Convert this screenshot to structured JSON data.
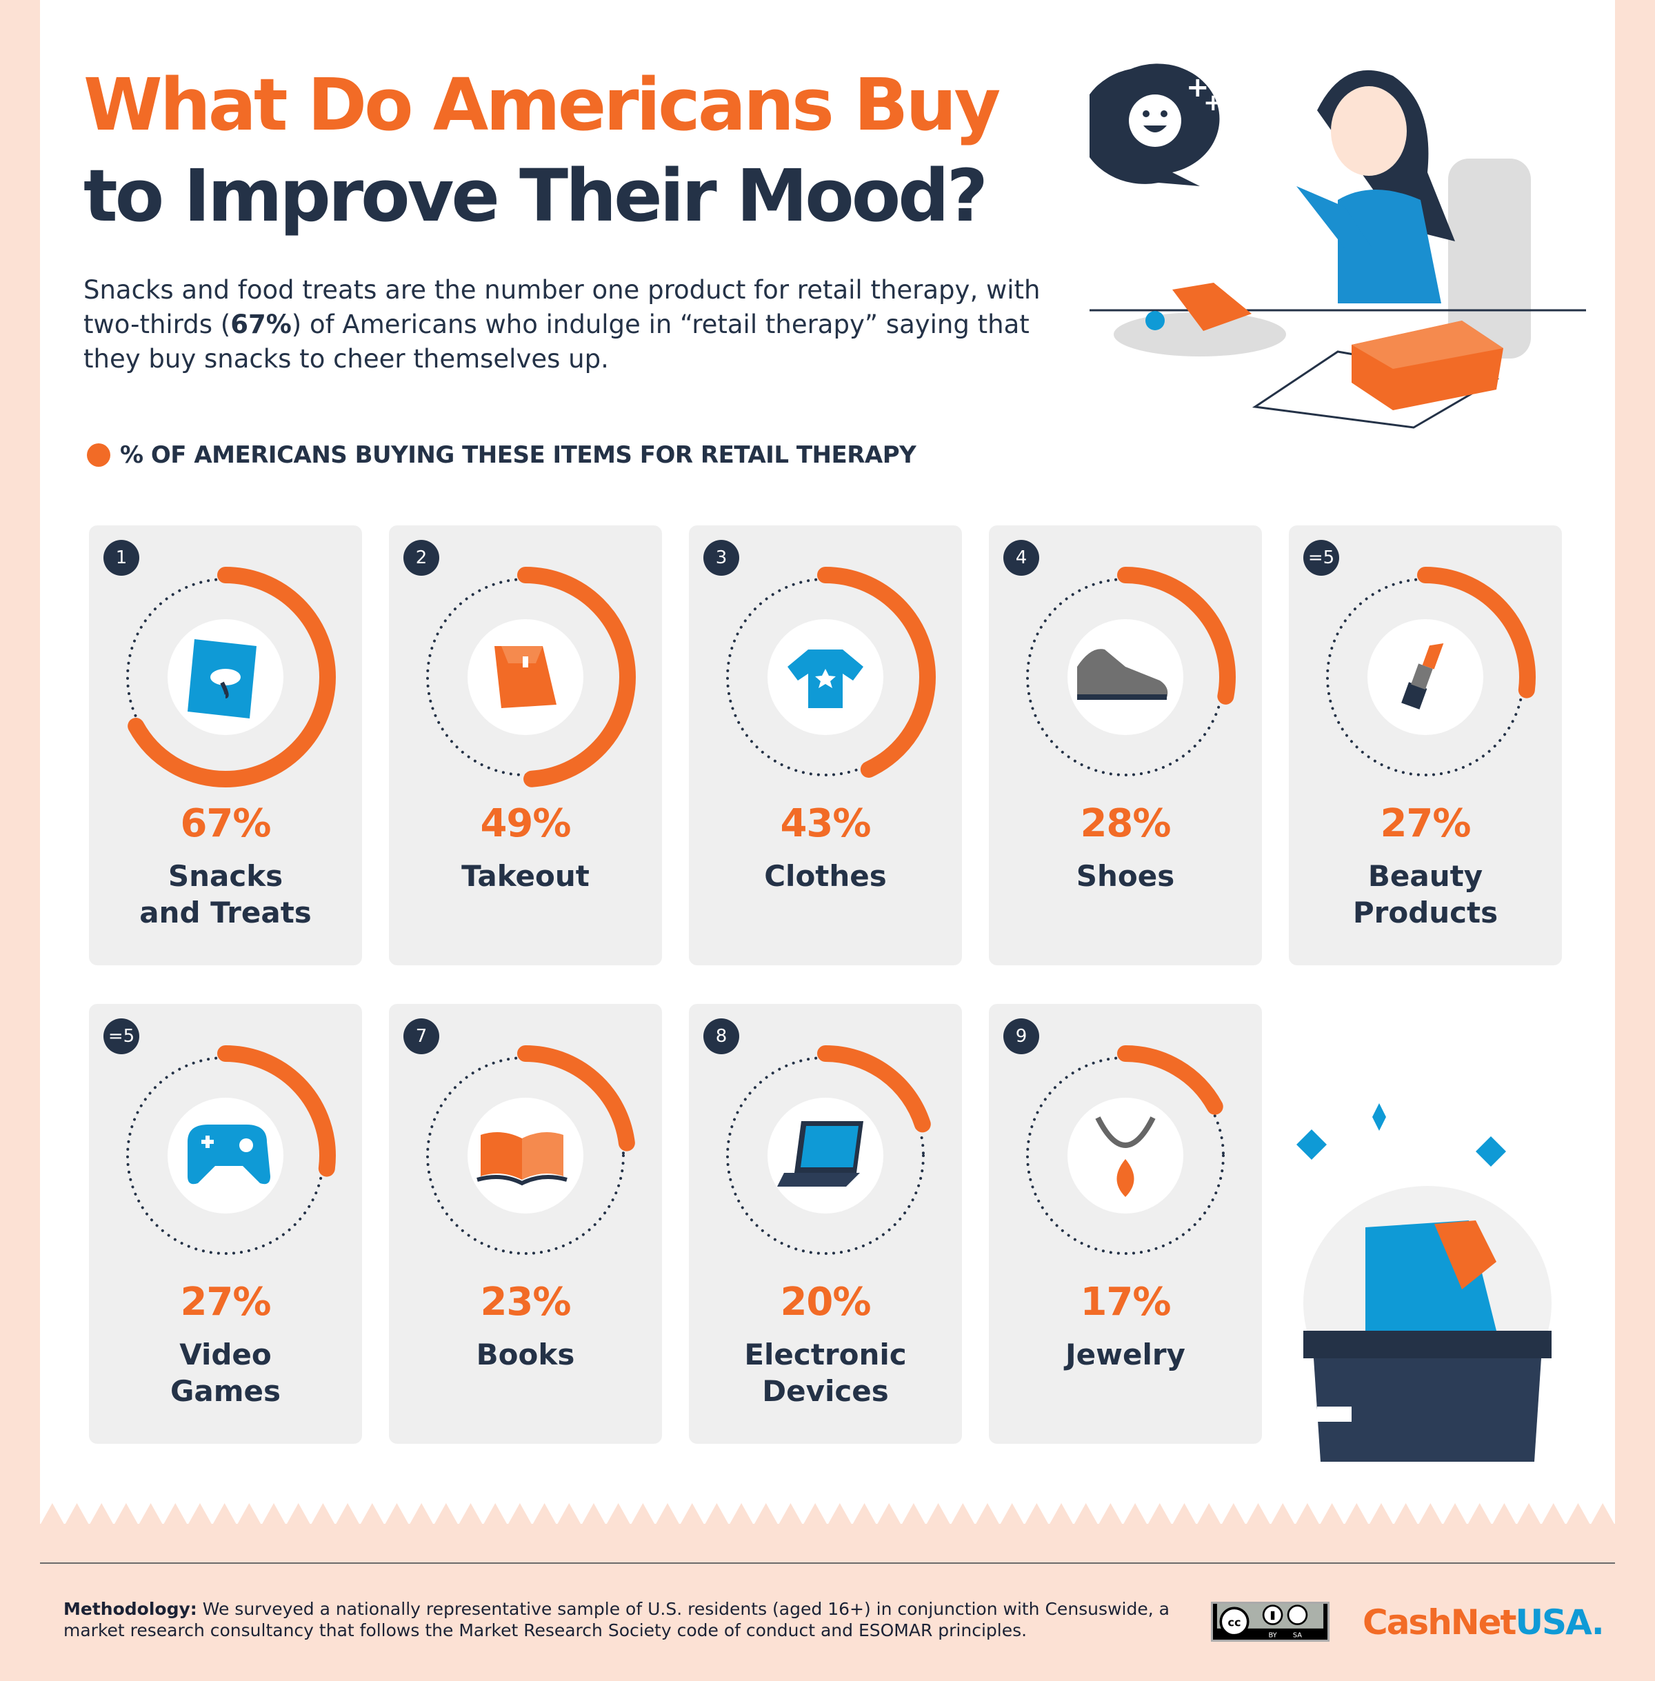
{
  "header": {
    "title_line1": "What Do Americans Buy",
    "title_line2": "to Improve Their Mood?",
    "intro_pre": "Snacks and food treats are the number one product for retail therapy, with two-thirds (",
    "intro_bold": "67%",
    "intro_post": ") of Americans who indulge in “retail therapy” saying that they buy snacks to cheer themselves up."
  },
  "legend": {
    "label": "% OF AMERICANS BUYING THESE ITEMS FOR RETAIL THERAPY",
    "color": "#f26b26"
  },
  "chart_data": {
    "type": "radial-progress",
    "unit": "%",
    "items": [
      {
        "rank": "1",
        "category": "Snacks and Treats",
        "value": 67,
        "label": "67%",
        "icon": "snack-bag-icon"
      },
      {
        "rank": "2",
        "category": "Takeout",
        "value": 49,
        "label": "49%",
        "icon": "takeout-bag-icon"
      },
      {
        "rank": "3",
        "category": "Clothes",
        "value": 43,
        "label": "43%",
        "icon": "tshirt-icon"
      },
      {
        "rank": "4",
        "category": "Shoes",
        "value": 28,
        "label": "28%",
        "icon": "sneaker-icon"
      },
      {
        "rank": "=5",
        "category": "Beauty Products",
        "value": 27,
        "label": "27%",
        "icon": "lipstick-icon"
      },
      {
        "rank": "=5",
        "category": "Video Games",
        "value": 27,
        "label": "27%",
        "icon": "gamepad-icon"
      },
      {
        "rank": "7",
        "category": "Books",
        "value": 23,
        "label": "23%",
        "icon": "book-icon"
      },
      {
        "rank": "8",
        "category": "Electronic Devices",
        "value": 20,
        "label": "20%",
        "icon": "laptop-icon"
      },
      {
        "rank": "9",
        "category": "Jewelry",
        "value": 17,
        "label": "17%",
        "icon": "necklace-icon"
      }
    ],
    "colors": {
      "arc": "#f26b26",
      "track": "#243247",
      "icon_blue": "#0f9ad6"
    }
  },
  "footer": {
    "methodology_label": "Methodology:",
    "methodology_text": " We surveyed a nationally representative sample of U.S. residents (aged 16+) in conjunction with Censuswide, a market research consultancy that follows the Market Research Society code of conduct and ESOMAR principles.",
    "license": "CC BY SA",
    "brand_a": "CashNet",
    "brand_b": "USA",
    "brand_suffix": "."
  }
}
